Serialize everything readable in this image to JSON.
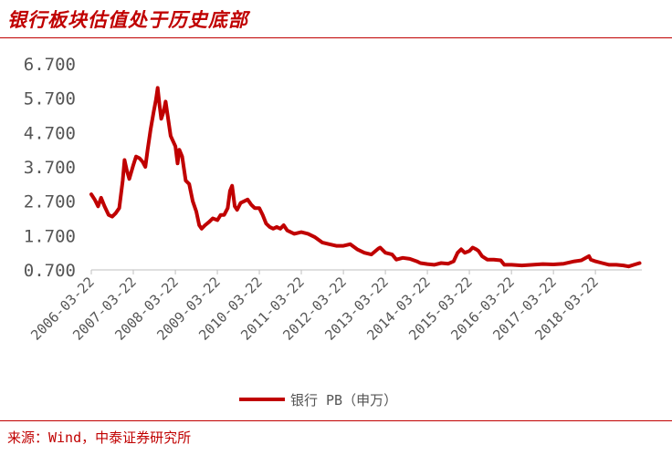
{
  "title": "银行板块估值处于历史底部",
  "source": "来源：Wind，中泰证券研究所",
  "colors": {
    "accent": "#c00000",
    "axis": "#bfbfbf",
    "text": "#555555"
  },
  "chart_data": {
    "type": "line",
    "title": "银行板块估值处于历史底部",
    "xlabel": "",
    "ylabel": "",
    "ylim": [
      0.7,
      6.7
    ],
    "yticks": [
      0.7,
      1.7,
      2.7,
      3.7,
      4.7,
      5.7,
      6.7
    ],
    "ytick_labels": [
      "0.700",
      "1.700",
      "2.700",
      "3.700",
      "4.700",
      "5.700",
      "6.700"
    ],
    "xlim": [
      "2006-03-22",
      "2019-04-30"
    ],
    "xticks": [
      "2006-03-22",
      "2007-03-22",
      "2008-03-22",
      "2009-03-22",
      "2010-03-22",
      "2011-03-22",
      "2012-03-22",
      "2013-03-22",
      "2014-03-22",
      "2015-03-22",
      "2016-03-22",
      "2017-03-22",
      "2018-03-22"
    ],
    "grid": false,
    "legend": "bottom",
    "series": [
      {
        "name": "银行 PB（申万）",
        "color": "#c00000",
        "points": [
          [
            "2006-03-22",
            2.9
          ],
          [
            "2006-04-20",
            2.75
          ],
          [
            "2006-05-20",
            2.55
          ],
          [
            "2006-06-15",
            2.8
          ],
          [
            "2006-07-15",
            2.55
          ],
          [
            "2006-08-20",
            2.3
          ],
          [
            "2006-09-20",
            2.25
          ],
          [
            "2006-10-20",
            2.35
          ],
          [
            "2006-11-20",
            2.5
          ],
          [
            "2006-12-20",
            3.3
          ],
          [
            "2007-01-05",
            3.9
          ],
          [
            "2007-01-25",
            3.6
          ],
          [
            "2007-02-15",
            3.35
          ],
          [
            "2007-03-22",
            3.75
          ],
          [
            "2007-04-15",
            4.0
          ],
          [
            "2007-05-15",
            3.95
          ],
          [
            "2007-06-10",
            3.85
          ],
          [
            "2007-07-05",
            3.7
          ],
          [
            "2007-07-25",
            4.2
          ],
          [
            "2007-08-20",
            4.8
          ],
          [
            "2007-09-15",
            5.3
          ],
          [
            "2007-10-05",
            5.65
          ],
          [
            "2007-10-20",
            6.0
          ],
          [
            "2007-11-05",
            5.5
          ],
          [
            "2007-11-20",
            5.1
          ],
          [
            "2007-12-10",
            5.3
          ],
          [
            "2007-12-28",
            5.6
          ],
          [
            "2008-01-15",
            5.2
          ],
          [
            "2008-02-10",
            4.6
          ],
          [
            "2008-03-22",
            4.3
          ],
          [
            "2008-04-10",
            3.8
          ],
          [
            "2008-04-25",
            4.2
          ],
          [
            "2008-05-20",
            4.0
          ],
          [
            "2008-06-20",
            3.3
          ],
          [
            "2008-07-20",
            3.2
          ],
          [
            "2008-08-20",
            2.7
          ],
          [
            "2008-09-20",
            2.4
          ],
          [
            "2008-10-15",
            2.0
          ],
          [
            "2008-11-05",
            1.9
          ],
          [
            "2008-12-05",
            2.0
          ],
          [
            "2009-01-10",
            2.1
          ],
          [
            "2009-02-10",
            2.2
          ],
          [
            "2009-03-22",
            2.15
          ],
          [
            "2009-04-20",
            2.3
          ],
          [
            "2009-05-20",
            2.3
          ],
          [
            "2009-06-20",
            2.5
          ],
          [
            "2009-07-10",
            3.0
          ],
          [
            "2009-07-28",
            3.15
          ],
          [
            "2009-08-20",
            2.55
          ],
          [
            "2009-09-10",
            2.45
          ],
          [
            "2009-10-10",
            2.65
          ],
          [
            "2009-11-10",
            2.7
          ],
          [
            "2009-12-10",
            2.75
          ],
          [
            "2010-01-10",
            2.6
          ],
          [
            "2010-02-10",
            2.5
          ],
          [
            "2010-03-22",
            2.5
          ],
          [
            "2010-04-20",
            2.3
          ],
          [
            "2010-05-20",
            2.05
          ],
          [
            "2010-06-20",
            1.95
          ],
          [
            "2010-07-20",
            1.9
          ],
          [
            "2010-08-20",
            1.95
          ],
          [
            "2010-09-20",
            1.9
          ],
          [
            "2010-10-20",
            2.0
          ],
          [
            "2010-11-20",
            1.85
          ],
          [
            "2010-12-20",
            1.8
          ],
          [
            "2011-01-20",
            1.75
          ],
          [
            "2011-03-22",
            1.8
          ],
          [
            "2011-05-20",
            1.75
          ],
          [
            "2011-07-20",
            1.65
          ],
          [
            "2011-09-20",
            1.5
          ],
          [
            "2011-11-20",
            1.45
          ],
          [
            "2012-01-20",
            1.4
          ],
          [
            "2012-03-22",
            1.4
          ],
          [
            "2012-05-20",
            1.45
          ],
          [
            "2012-07-20",
            1.3
          ],
          [
            "2012-09-20",
            1.2
          ],
          [
            "2012-11-20",
            1.15
          ],
          [
            "2013-01-20",
            1.32
          ],
          [
            "2013-02-05",
            1.35
          ],
          [
            "2013-03-22",
            1.2
          ],
          [
            "2013-05-20",
            1.15
          ],
          [
            "2013-06-25",
            1.0
          ],
          [
            "2013-08-20",
            1.05
          ],
          [
            "2013-10-20",
            1.02
          ],
          [
            "2013-12-20",
            0.95
          ],
          [
            "2014-01-20",
            0.9
          ],
          [
            "2014-03-22",
            0.87
          ],
          [
            "2014-05-20",
            0.85
          ],
          [
            "2014-07-20",
            0.9
          ],
          [
            "2014-09-20",
            0.88
          ],
          [
            "2014-11-05",
            0.95
          ],
          [
            "2014-12-10",
            1.2
          ],
          [
            "2015-01-10",
            1.3
          ],
          [
            "2015-02-10",
            1.2
          ],
          [
            "2015-03-22",
            1.25
          ],
          [
            "2015-04-20",
            1.35
          ],
          [
            "2015-05-20",
            1.3
          ],
          [
            "2015-06-10",
            1.25
          ],
          [
            "2015-07-10",
            1.1
          ],
          [
            "2015-08-25",
            1.0
          ],
          [
            "2015-10-20",
            1.0
          ],
          [
            "2015-12-20",
            0.98
          ],
          [
            "2016-01-20",
            0.85
          ],
          [
            "2016-03-22",
            0.85
          ],
          [
            "2016-06-20",
            0.83
          ],
          [
            "2016-09-20",
            0.85
          ],
          [
            "2016-12-20",
            0.87
          ],
          [
            "2017-03-22",
            0.86
          ],
          [
            "2017-06-20",
            0.88
          ],
          [
            "2017-09-20",
            0.95
          ],
          [
            "2017-11-20",
            0.98
          ],
          [
            "2018-01-25",
            1.1
          ],
          [
            "2018-02-10",
            1.0
          ],
          [
            "2018-03-22",
            0.95
          ],
          [
            "2018-05-20",
            0.9
          ],
          [
            "2018-07-20",
            0.85
          ],
          [
            "2018-09-20",
            0.85
          ],
          [
            "2018-11-20",
            0.83
          ],
          [
            "2019-01-05",
            0.8
          ],
          [
            "2019-02-20",
            0.85
          ],
          [
            "2019-04-10",
            0.9
          ]
        ]
      }
    ]
  }
}
